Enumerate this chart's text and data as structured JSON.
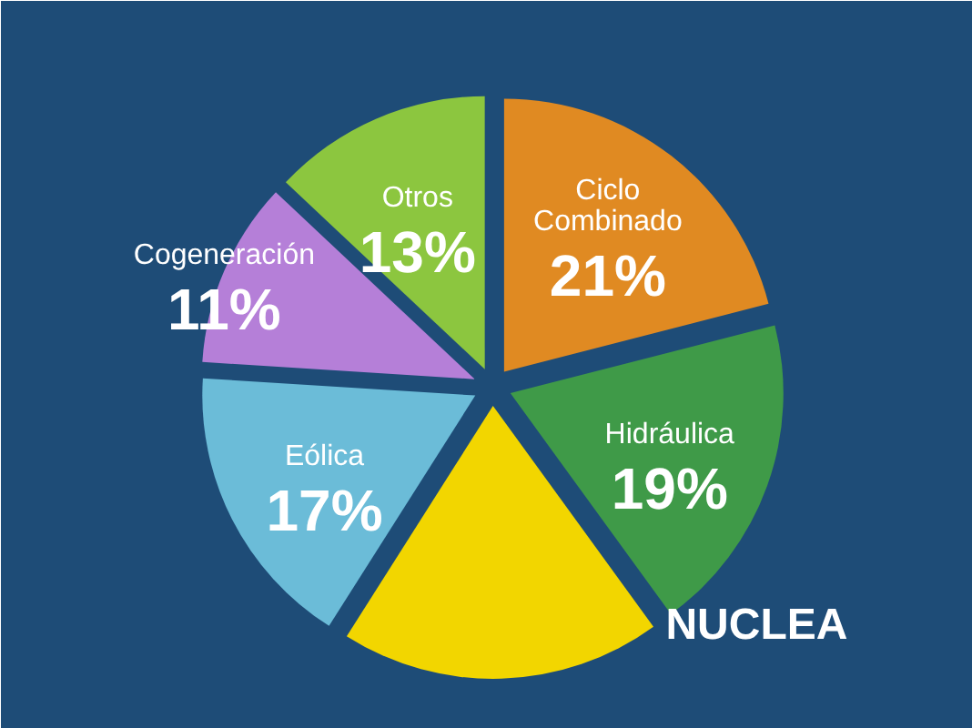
{
  "chart_data": {
    "type": "pie",
    "categories": [
      "Ciclo Combinado",
      "Hidráulica",
      "NUCLEA",
      "Eólica",
      "Cogeneración",
      "Otros"
    ],
    "values": [
      21,
      19,
      19,
      17,
      11,
      13
    ],
    "colors": [
      "#e08a22",
      "#3f9a48",
      "#f2d600",
      "#6bbcd8",
      "#b57fd8",
      "#8cc63f"
    ],
    "value_labels": [
      "21%",
      "19%",
      null,
      "17%",
      "11%",
      "13%"
    ]
  }
}
